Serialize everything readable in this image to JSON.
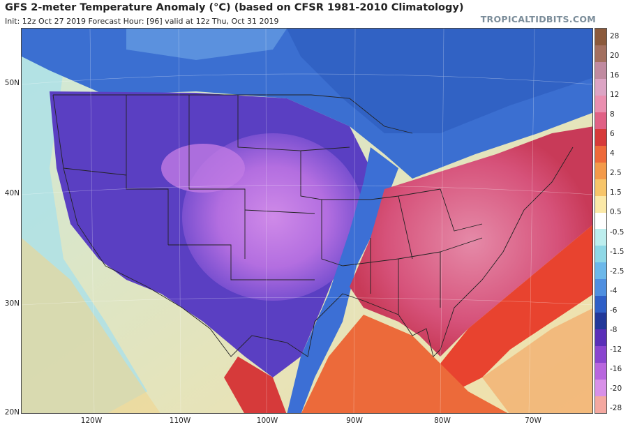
{
  "header": {
    "title": "GFS 2-meter Temperature Anomaly (°C) (based on CFSR 1981-2010 Climatology)",
    "subtitle": "Init: 12z Oct 27 2019   Forecast Hour: [96]   valid at 12z Thu, Oct 31 2019",
    "brand": "TROPICALTIDBITS.COM"
  },
  "map": {
    "lat_labels": [
      "50N",
      "40N",
      "30N",
      "20N"
    ],
    "lon_labels": [
      "120W",
      "110W",
      "100W",
      "90W",
      "80W",
      "70W"
    ],
    "colors": {
      "ocean_warm": "#f3d6a0",
      "ocean_neutral": "#bfe7ee",
      "canada_cold": "#2f63c9",
      "west_cold": "#5b3fc4",
      "plains_very_cold": "#c27be6",
      "east_warm": "#e0607e",
      "atlantic_warm": "#e8432f"
    }
  },
  "colorbar": {
    "labels": [
      "28",
      "20",
      "16",
      "12",
      "8",
      "6",
      "4",
      "2.5",
      "1.5",
      "0.5",
      "-0.5",
      "-1.5",
      "-2.5",
      "-4",
      "-6",
      "-8",
      "-12",
      "-16",
      "-20",
      "-28"
    ],
    "colors": [
      "#8b5a3c",
      "#a37060",
      "#c08aa0",
      "#dca4c4",
      "#ea8fb0",
      "#e06085",
      "#d63a3a",
      "#ee6a3a",
      "#f39a4a",
      "#f7c56a",
      "#fbe9a8",
      "#ffffff",
      "#bdeeee",
      "#8fd8e6",
      "#6cb8ea",
      "#4f8fe0",
      "#2f5fc7",
      "#22389a",
      "#5a2fb8",
      "#8a45cf",
      "#b866de",
      "#d890e8",
      "#f4a8a0"
    ]
  }
}
